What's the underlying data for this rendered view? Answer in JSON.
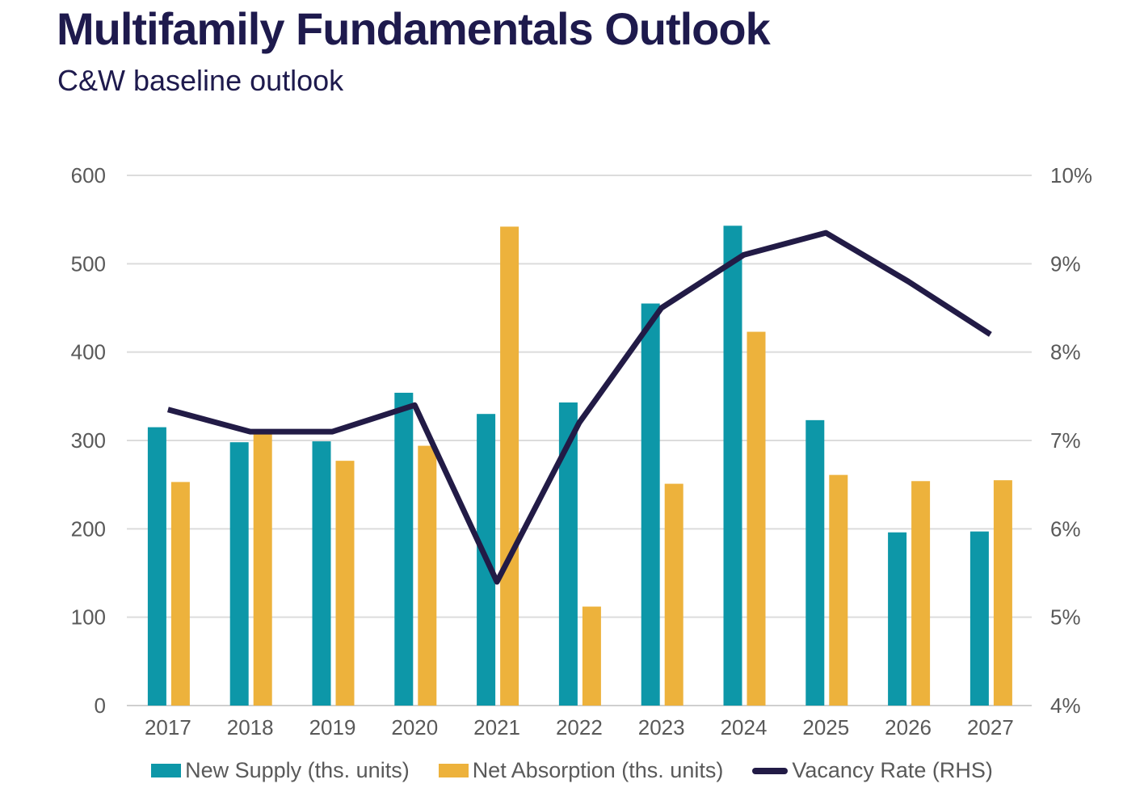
{
  "header": {
    "title": "Multifamily Fundamentals Outlook",
    "subtitle": "C&W baseline outlook"
  },
  "colors": {
    "new_supply": "#0d97a8",
    "net_absorption": "#edb23c",
    "vacancy_line": "#221b46",
    "title_text": "#1e1a4d",
    "axis_text": "#595959",
    "gridline": "#dcdcdc"
  },
  "chart_data": {
    "type": "combo-bar-line",
    "title": "Multifamily Fundamentals Outlook",
    "subtitle": "C&W baseline outlook",
    "categories": [
      "2017",
      "2018",
      "2019",
      "2020",
      "2021",
      "2022",
      "2023",
      "2024",
      "2025",
      "2026",
      "2027"
    ],
    "series": [
      {
        "name": "New Supply (ths. units)",
        "type": "bar",
        "axis": "left",
        "color": "#0d97a8",
        "values": [
          315,
          298,
          299,
          354,
          330,
          343,
          455,
          543,
          323,
          196,
          197
        ]
      },
      {
        "name": "Net Absorption (ths. units)",
        "type": "bar",
        "axis": "left",
        "color": "#edb23c",
        "values": [
          253,
          307,
          277,
          294,
          542,
          112,
          251,
          423,
          261,
          254,
          255
        ]
      },
      {
        "name": "Vacancy Rate (RHS)",
        "type": "line",
        "axis": "right",
        "color": "#221b46",
        "values": [
          7.35,
          7.1,
          7.1,
          7.4,
          5.4,
          7.2,
          8.5,
          9.1,
          9.35,
          8.8,
          8.2
        ]
      }
    ],
    "left_axis": {
      "min": 0,
      "max": 600,
      "step": 100,
      "tick_labels": [
        "600",
        "500",
        "400",
        "300",
        "200",
        "100",
        "0"
      ]
    },
    "right_axis": {
      "min": 4,
      "max": 10,
      "step": 1,
      "tick_labels": [
        "10%",
        "9%",
        "8%",
        "7%",
        "6%",
        "5%",
        "4%"
      ]
    },
    "grid": true,
    "legend_position": "bottom"
  }
}
